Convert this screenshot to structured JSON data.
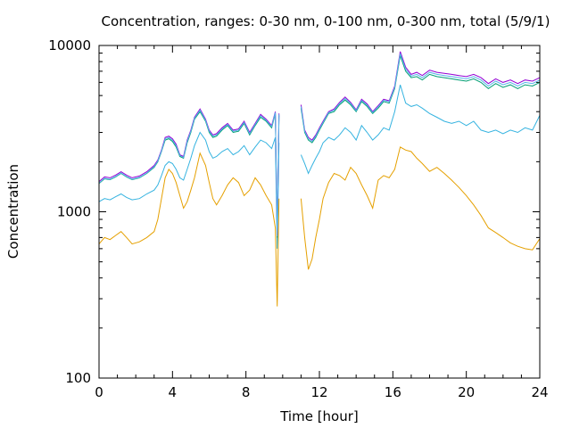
{
  "chart_data": {
    "type": "line",
    "title": "Concentration, ranges: 0-30 nm, 0-100 nm, 0-300 nm, total (5/9/1)",
    "xlabel": "Time [hour]",
    "ylabel": "Concentration",
    "xlim": [
      0,
      24
    ],
    "ylim": [
      100,
      10000
    ],
    "y_scale": "log",
    "grid": false,
    "legend": "none",
    "x_ticks": [
      0,
      4,
      8,
      12,
      16,
      20,
      24
    ],
    "x_tick_labels": [
      "0",
      "4",
      "8",
      "12",
      "16",
      "20",
      "24"
    ],
    "y_ticks": [
      100,
      1000,
      10000
    ],
    "y_tick_labels": [
      "100",
      "1000",
      "10000"
    ],
    "series": [
      {
        "color": "#e5a000",
        "x": [
          0,
          0.3,
          0.6,
          0.9,
          1.2,
          1.5,
          1.8,
          2.2,
          2.6,
          3.0,
          3.2,
          3.4,
          3.6,
          3.8,
          4.0,
          4.2,
          4.4,
          4.6,
          4.8,
          5.0,
          5.2,
          5.5,
          5.8,
          6.0,
          6.2,
          6.4,
          6.7,
          7.0,
          7.3,
          7.6,
          7.9,
          8.2,
          8.5,
          8.8,
          9.1,
          9.4,
          9.6,
          9.7,
          9.8,
          null,
          11.0,
          11.2,
          11.4,
          11.6,
          11.8,
          12.0,
          12.2,
          12.5,
          12.8,
          13.1,
          13.4,
          13.7,
          14.0,
          14.3,
          14.6,
          14.9,
          15.2,
          15.5,
          15.8,
          16.1,
          16.4,
          16.7,
          17.0,
          17.3,
          17.6,
          18.0,
          18.4,
          18.8,
          19.2,
          19.6,
          20.0,
          20.4,
          20.8,
          21.2,
          21.6,
          22.0,
          22.4,
          22.8,
          23.2,
          23.6,
          24.0
        ],
        "y": [
          640,
          700,
          680,
          720,
          760,
          700,
          640,
          660,
          700,
          760,
          900,
          1200,
          1600,
          1800,
          1700,
          1500,
          1250,
          1050,
          1150,
          1350,
          1600,
          2250,
          1900,
          1500,
          1200,
          1100,
          1250,
          1450,
          1600,
          1500,
          1250,
          1350,
          1600,
          1450,
          1250,
          1100,
          800,
          270,
          1200,
          null,
          1200,
          700,
          450,
          520,
          700,
          900,
          1200,
          1500,
          1700,
          1650,
          1550,
          1850,
          1700,
          1450,
          1250,
          1050,
          1550,
          1650,
          1600,
          1800,
          2450,
          2350,
          2300,
          2100,
          1950,
          1750,
          1850,
          1700,
          1550,
          1400,
          1250,
          1100,
          950,
          800,
          750,
          700,
          650,
          620,
          600,
          590,
          690
        ]
      },
      {
        "color": "#35b3e0",
        "x": [
          0,
          0.3,
          0.6,
          0.9,
          1.2,
          1.5,
          1.8,
          2.2,
          2.6,
          3.0,
          3.2,
          3.4,
          3.6,
          3.8,
          4.0,
          4.2,
          4.4,
          4.6,
          4.8,
          5.0,
          5.2,
          5.5,
          5.8,
          6.0,
          6.2,
          6.4,
          6.7,
          7.0,
          7.3,
          7.6,
          7.9,
          8.2,
          8.5,
          8.8,
          9.1,
          9.4,
          9.6,
          9.7,
          9.8,
          null,
          11.0,
          11.2,
          11.4,
          11.6,
          11.8,
          12.0,
          12.2,
          12.5,
          12.8,
          13.1,
          13.4,
          13.7,
          14.0,
          14.3,
          14.6,
          14.9,
          15.2,
          15.5,
          15.8,
          16.1,
          16.4,
          16.7,
          17.0,
          17.3,
          17.6,
          18.0,
          18.4,
          18.8,
          19.2,
          19.6,
          20.0,
          20.4,
          20.8,
          21.2,
          21.6,
          22.0,
          22.4,
          22.8,
          23.2,
          23.6,
          24.0
        ],
        "y": [
          1150,
          1200,
          1180,
          1230,
          1280,
          1220,
          1180,
          1200,
          1280,
          1350,
          1450,
          1650,
          1900,
          2000,
          1950,
          1800,
          1600,
          1550,
          1800,
          2100,
          2500,
          3000,
          2700,
          2300,
          2100,
          2150,
          2300,
          2400,
          2200,
          2300,
          2500,
          2200,
          2450,
          2700,
          2600,
          2400,
          2800,
          600,
          2600,
          null,
          2200,
          1950,
          1700,
          1900,
          2100,
          2300,
          2600,
          2800,
          2700,
          2900,
          3200,
          3000,
          2700,
          3300,
          3000,
          2700,
          2900,
          3200,
          3100,
          4000,
          5800,
          4500,
          4300,
          4400,
          4200,
          3900,
          3700,
          3500,
          3400,
          3500,
          3300,
          3500,
          3100,
          3000,
          3100,
          2950,
          3100,
          3000,
          3200,
          3100,
          3800
        ]
      },
      {
        "color": "#009e73",
        "x": [
          0,
          0.3,
          0.6,
          0.9,
          1.2,
          1.5,
          1.8,
          2.2,
          2.6,
          3.0,
          3.2,
          3.4,
          3.6,
          3.8,
          4.0,
          4.2,
          4.4,
          4.6,
          4.8,
          5.0,
          5.2,
          5.5,
          5.8,
          6.0,
          6.2,
          6.4,
          6.7,
          7.0,
          7.3,
          7.6,
          7.9,
          8.2,
          8.5,
          8.8,
          9.1,
          9.4,
          9.6,
          9.7,
          9.8,
          null,
          11.0,
          11.2,
          11.4,
          11.6,
          11.8,
          12.0,
          12.2,
          12.5,
          12.8,
          13.1,
          13.4,
          13.7,
          14.0,
          14.3,
          14.6,
          14.9,
          15.2,
          15.5,
          15.8,
          16.1,
          16.4,
          16.7,
          17.0,
          17.3,
          17.6,
          18.0,
          18.4,
          18.8,
          19.2,
          19.6,
          20.0,
          20.4,
          20.8,
          21.2,
          21.6,
          22.0,
          22.4,
          22.8,
          23.2,
          23.6,
          24.0
        ],
        "y": [
          1480,
          1580,
          1560,
          1620,
          1700,
          1620,
          1560,
          1600,
          1700,
          1850,
          2000,
          2300,
          2700,
          2750,
          2650,
          2450,
          2150,
          2100,
          2600,
          3000,
          3600,
          4000,
          3500,
          3000,
          2800,
          2850,
          3100,
          3300,
          3000,
          3050,
          3400,
          2900,
          3300,
          3700,
          3500,
          3200,
          3900,
          700,
          3800,
          null,
          4200,
          3000,
          2700,
          2600,
          2800,
          3100,
          3400,
          3900,
          4000,
          4400,
          4700,
          4400,
          4000,
          4600,
          4300,
          3900,
          4200,
          4600,
          4500,
          5500,
          8700,
          7000,
          6400,
          6500,
          6200,
          6700,
          6500,
          6400,
          6300,
          6200,
          6100,
          6300,
          6000,
          5500,
          5900,
          5600,
          5800,
          5500,
          5800,
          5700,
          6000
        ]
      },
      {
        "color": "#9400d3",
        "x": [
          0,
          0.3,
          0.6,
          0.9,
          1.2,
          1.5,
          1.8,
          2.2,
          2.6,
          3.0,
          3.2,
          3.4,
          3.6,
          3.8,
          4.0,
          4.2,
          4.4,
          4.6,
          4.8,
          5.0,
          5.2,
          5.5,
          5.8,
          6.0,
          6.2,
          6.4,
          6.7,
          7.0,
          7.3,
          7.6,
          7.9,
          8.2,
          8.5,
          8.8,
          9.1,
          9.4,
          9.6,
          9.7,
          9.8,
          null,
          11.0,
          11.2,
          11.4,
          11.6,
          11.8,
          12.0,
          12.2,
          12.5,
          12.8,
          13.1,
          13.4,
          13.7,
          14.0,
          14.3,
          14.6,
          14.9,
          15.2,
          15.5,
          15.8,
          16.1,
          16.4,
          16.7,
          17.0,
          17.3,
          17.6,
          18.0,
          18.4,
          18.8,
          19.2,
          19.6,
          20.0,
          20.4,
          20.8,
          21.2,
          21.6,
          22.0,
          22.4,
          22.8,
          23.2,
          23.6,
          24.0
        ],
        "y": [
          1520,
          1620,
          1600,
          1660,
          1740,
          1660,
          1600,
          1640,
          1740,
          1900,
          2050,
          2350,
          2800,
          2850,
          2750,
          2550,
          2200,
          2150,
          2700,
          3100,
          3700,
          4150,
          3600,
          3100,
          2900,
          2950,
          3200,
          3400,
          3100,
          3150,
          3500,
          3000,
          3400,
          3850,
          3600,
          3300,
          4000,
          720,
          3900,
          null,
          4400,
          3100,
          2800,
          2700,
          2900,
          3200,
          3500,
          4000,
          4150,
          4550,
          4900,
          4550,
          4100,
          4750,
          4450,
          4000,
          4350,
          4750,
          4650,
          5700,
          9200,
          7400,
          6700,
          6900,
          6600,
          7100,
          6900,
          6800,
          6700,
          6600,
          6500,
          6700,
          6400,
          5900,
          6300,
          6000,
          6200,
          5900,
          6200,
          6100,
          6400
        ]
      },
      {
        "color": "#56b4e9",
        "x": [
          0,
          0.3,
          0.6,
          0.9,
          1.2,
          1.5,
          1.8,
          2.2,
          2.6,
          3.0,
          3.2,
          3.4,
          3.6,
          3.8,
          4.0,
          4.2,
          4.4,
          4.6,
          4.8,
          5.0,
          5.2,
          5.5,
          5.8,
          6.0,
          6.2,
          6.4,
          6.7,
          7.0,
          7.3,
          7.6,
          7.9,
          8.2,
          8.5,
          8.8,
          9.1,
          9.4,
          9.6,
          9.7,
          9.8,
          null,
          11.0,
          11.2,
          11.4,
          11.6,
          11.8,
          12.0,
          12.2,
          12.5,
          12.8,
          13.1,
          13.4,
          13.7,
          14.0,
          14.3,
          14.6,
          14.9,
          15.2,
          15.5,
          15.8,
          16.1,
          16.4,
          16.7,
          17.0,
          17.3,
          17.6,
          18.0,
          18.4,
          18.8,
          19.2,
          19.6,
          20.0,
          20.4,
          20.8,
          21.2,
          21.6,
          22.0,
          22.4,
          22.8,
          23.2,
          23.6,
          24.0
        ],
        "y": [
          1490,
          1590,
          1570,
          1630,
          1710,
          1630,
          1570,
          1610,
          1710,
          1870,
          2020,
          2320,
          2750,
          2800,
          2700,
          2500,
          2180,
          2120,
          2650,
          3050,
          3650,
          4080,
          3550,
          3050,
          2850,
          2900,
          3150,
          3350,
          3050,
          3100,
          3450,
          2950,
          3350,
          3780,
          3550,
          3250,
          3950,
          710,
          3850,
          null,
          4300,
          3050,
          2750,
          2650,
          2850,
          3150,
          3450,
          3950,
          4080,
          4480,
          4800,
          4480,
          4050,
          4680,
          4380,
          3950,
          4280,
          4680,
          4580,
          5600,
          8950,
          7200,
          6550,
          6700,
          6400,
          6900,
          6700,
          6600,
          6500,
          6400,
          6300,
          6500,
          6200,
          5700,
          6100,
          5800,
          6000,
          5700,
          6000,
          5900,
          6200
        ]
      }
    ]
  }
}
